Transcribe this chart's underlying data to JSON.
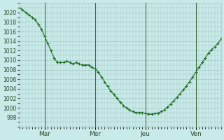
{
  "title": "",
  "ylabel": "",
  "xlabel": "",
  "bg_color": "#c8eae8",
  "plot_bg_color": "#c8eae8",
  "grid_color": "#a0c8c8",
  "line_color": "#1a6b1a",
  "marker_color": "#1a6b1a",
  "tick_label_color": "#2a4a2a",
  "yticks": [
    998,
    1000,
    1002,
    1004,
    1006,
    1008,
    1010,
    1012,
    1014,
    1016,
    1018,
    1020
  ],
  "ylim": [
    996,
    1022
  ],
  "xtick_labels": [
    "Mar",
    "Mer",
    "Jeu",
    "Ven"
  ],
  "xtick_positions": [
    24,
    72,
    120,
    168
  ],
  "xlim": [
    0,
    192
  ],
  "data_x": [
    0,
    3,
    6,
    9,
    12,
    15,
    18,
    21,
    24,
    27,
    30,
    33,
    36,
    39,
    42,
    45,
    48,
    51,
    54,
    57,
    60,
    63,
    66,
    69,
    72,
    75,
    78,
    81,
    84,
    87,
    90,
    93,
    96,
    99,
    102,
    105,
    108,
    111,
    114,
    117,
    120,
    123,
    126,
    129,
    132,
    135,
    138,
    141,
    144,
    147,
    150,
    153,
    156,
    159,
    162,
    165,
    168,
    171,
    174,
    177,
    180,
    183,
    186,
    189,
    192
  ],
  "data_y": [
    1021,
    1020.5,
    1020,
    1019.5,
    1019,
    1018.5,
    1017.5,
    1016.5,
    1015,
    1013.5,
    1012,
    1010.5,
    1009.5,
    1009.5,
    1009.5,
    1009.8,
    1009.5,
    1009.2,
    1009.5,
    1009.2,
    1009.0,
    1009.0,
    1009.0,
    1008.5,
    1008.2,
    1007.5,
    1006.5,
    1005.5,
    1004.5,
    1003.5,
    1002.8,
    1002.0,
    1001.2,
    1000.5,
    1000.0,
    999.5,
    999.2,
    999.0,
    999.0,
    999.0,
    998.8,
    998.7,
    998.7,
    998.8,
    998.9,
    999.2,
    999.6,
    1000.2,
    1000.8,
    1001.5,
    1002.2,
    1003.0,
    1003.8,
    1004.6,
    1005.5,
    1006.5,
    1007.5,
    1008.5,
    1009.5,
    1010.5,
    1011.5,
    1012.2,
    1012.8,
    1013.5,
    1014.5
  ]
}
